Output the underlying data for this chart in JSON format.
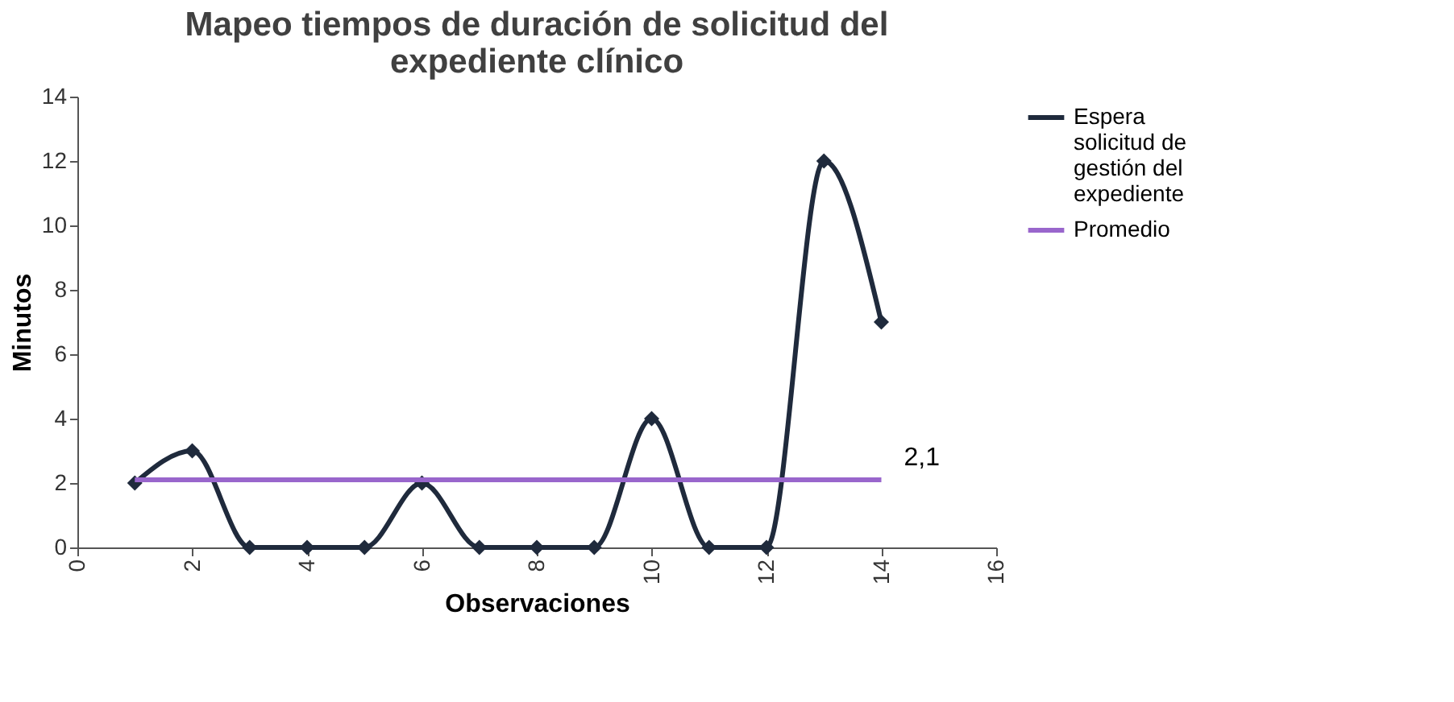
{
  "chart_data": {
    "type": "line",
    "title": "Mapeo tiempos de duración de solicitud del expediente clínico",
    "xlabel": "Observaciones",
    "ylabel": "Minutos",
    "xlim": [
      0,
      16
    ],
    "xticks": [
      0,
      2,
      4,
      6,
      8,
      10,
      12,
      14,
      16
    ],
    "ylim": [
      0,
      14
    ],
    "yticks": [
      0,
      2,
      4,
      6,
      8,
      10,
      12,
      14
    ],
    "grid": false,
    "legend": "right",
    "series": [
      {
        "name": "Espera solicitud de gestión del expediente",
        "color": "#1f2a3c",
        "marker": "diamond",
        "x": [
          1,
          2,
          3,
          4,
          5,
          6,
          7,
          8,
          9,
          10,
          11,
          12,
          13,
          14
        ],
        "values": [
          2,
          3,
          0,
          0,
          0,
          2,
          0,
          0,
          0,
          4,
          0,
          0,
          12,
          7
        ]
      },
      {
        "name": "Promedio",
        "color": "#9966cc",
        "marker": "none",
        "x": [
          1,
          14
        ],
        "values": [
          2.1,
          2.1
        ],
        "value_labels": [
          null,
          "2,1"
        ]
      }
    ]
  }
}
